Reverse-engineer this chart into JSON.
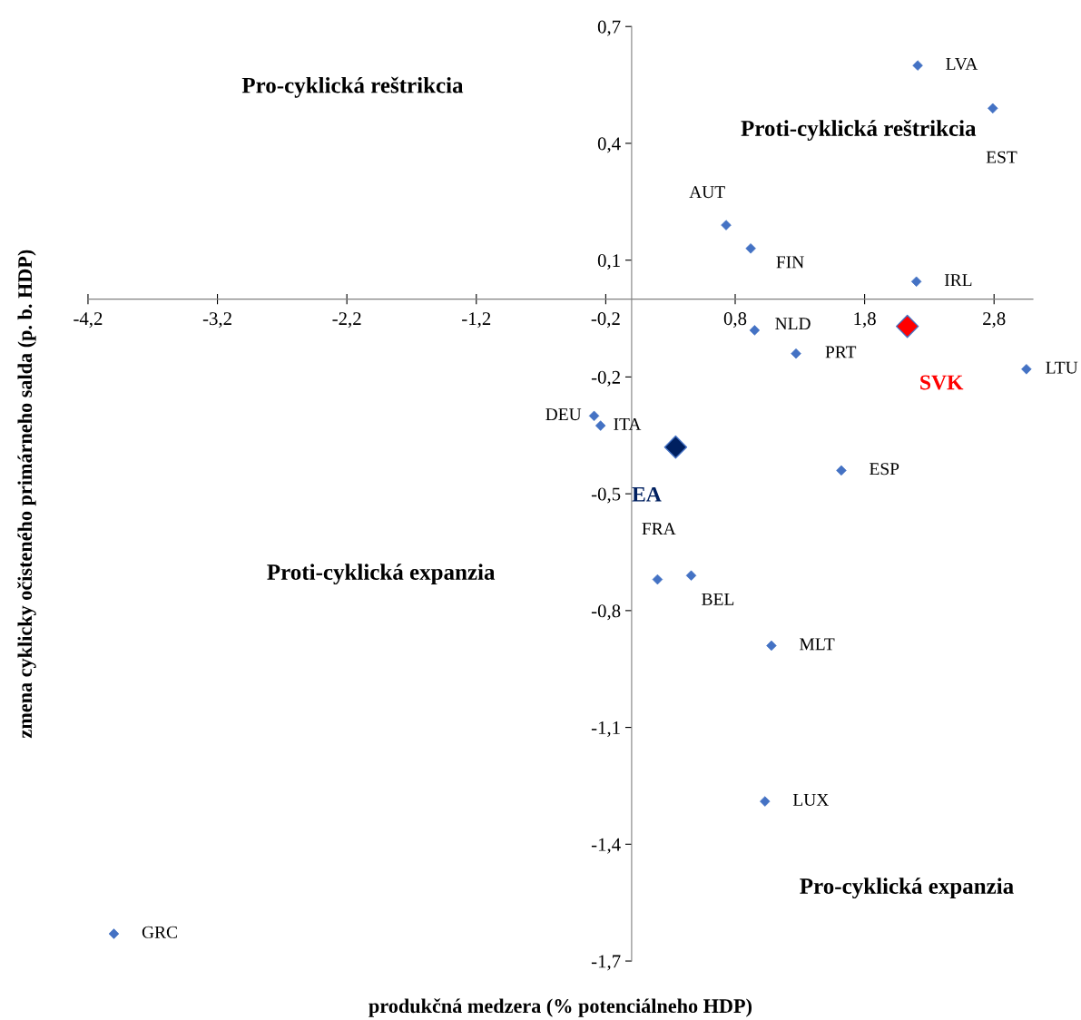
{
  "chart_data": {
    "type": "scatter",
    "xlabel": "produkčná medzera (% potenciálneho HDP)",
    "ylabel": "zmena cyklicky očisteného primárneho salda (p. b. HDP)",
    "xlim": [
      -4.2,
      3.1
    ],
    "ylim": [
      -1.7,
      0.7
    ],
    "xticks": [
      {
        "value": -4.2,
        "label": "-4,2"
      },
      {
        "value": -3.2,
        "label": "-3,2"
      },
      {
        "value": -2.2,
        "label": "-2,2"
      },
      {
        "value": -1.2,
        "label": "-1,2"
      },
      {
        "value": -0.2,
        "label": "-0,2"
      },
      {
        "value": 0.8,
        "label": "0,8"
      },
      {
        "value": 1.8,
        "label": "1,8"
      },
      {
        "value": 2.8,
        "label": "2,8"
      }
    ],
    "yticks": [
      {
        "value": 0.7,
        "label": "0,7"
      },
      {
        "value": 0.4,
        "label": "0,4"
      },
      {
        "value": 0.1,
        "label": "0,1"
      },
      {
        "value": -0.2,
        "label": "-0,2"
      },
      {
        "value": -0.5,
        "label": "-0,5"
      },
      {
        "value": -0.8,
        "label": "-0,8"
      },
      {
        "value": -1.1,
        "label": "-1,1"
      },
      {
        "value": -1.4,
        "label": "-1,4"
      },
      {
        "value": -1.7,
        "label": "-1,7"
      }
    ],
    "grid": false,
    "legend": false,
    "marker": "diamond",
    "annotations": [
      "Pro-cyklická reštrikcia",
      "Proti-cyklická reštrikcia",
      "Proti-cyklická expanzia",
      "Pro-cyklická expanzia"
    ],
    "series": [
      {
        "name": "LVA",
        "color": "#4472c4",
        "x": [
          2.21
        ],
        "values": [
          0.6
        ]
      },
      {
        "name": "EST",
        "color": "#4472c4",
        "x": [
          2.79
        ],
        "values": [
          0.49
        ]
      },
      {
        "name": "AUT",
        "color": "#4472c4",
        "x": [
          0.73
        ],
        "values": [
          0.19
        ]
      },
      {
        "name": "FIN",
        "color": "#4472c4",
        "x": [
          0.92
        ],
        "values": [
          0.13
        ]
      },
      {
        "name": "IRL",
        "color": "#4472c4",
        "x": [
          2.2
        ],
        "values": [
          0.045
        ]
      },
      {
        "name": "NLD",
        "color": "#4472c4",
        "x": [
          0.95
        ],
        "values": [
          -0.08
        ]
      },
      {
        "name": "SVK",
        "color": "#ff0000",
        "x": [
          2.13
        ],
        "values": [
          -0.07
        ]
      },
      {
        "name": "PRT",
        "color": "#4472c4",
        "x": [
          1.27
        ],
        "values": [
          -0.14
        ]
      },
      {
        "name": "LTU",
        "color": "#4472c4",
        "x": [
          3.05
        ],
        "values": [
          -0.18
        ]
      },
      {
        "name": "DEU",
        "color": "#4472c4",
        "x": [
          -0.29
        ],
        "values": [
          -0.3
        ]
      },
      {
        "name": "ITA",
        "color": "#4472c4",
        "x": [
          -0.24
        ],
        "values": [
          -0.325
        ]
      },
      {
        "name": "EA",
        "color": "#002060",
        "x": [
          0.34
        ],
        "values": [
          -0.38
        ]
      },
      {
        "name": "ESP",
        "color": "#4472c4",
        "x": [
          1.62
        ],
        "values": [
          -0.44
        ]
      },
      {
        "name": "FRA",
        "color": "#4472c4",
        "x": [
          0.2
        ],
        "values": [
          -0.72
        ]
      },
      {
        "name": "BEL",
        "color": "#4472c4",
        "x": [
          0.46
        ],
        "values": [
          -0.71
        ]
      },
      {
        "name": "MLT",
        "color": "#4472c4",
        "x": [
          1.08
        ],
        "values": [
          -0.89
        ]
      },
      {
        "name": "LUX",
        "color": "#4472c4",
        "x": [
          1.03
        ],
        "values": [
          -1.29
        ]
      },
      {
        "name": "GRC",
        "color": "#4472c4",
        "x": [
          -4.0
        ],
        "values": [
          -1.63
        ]
      }
    ]
  }
}
